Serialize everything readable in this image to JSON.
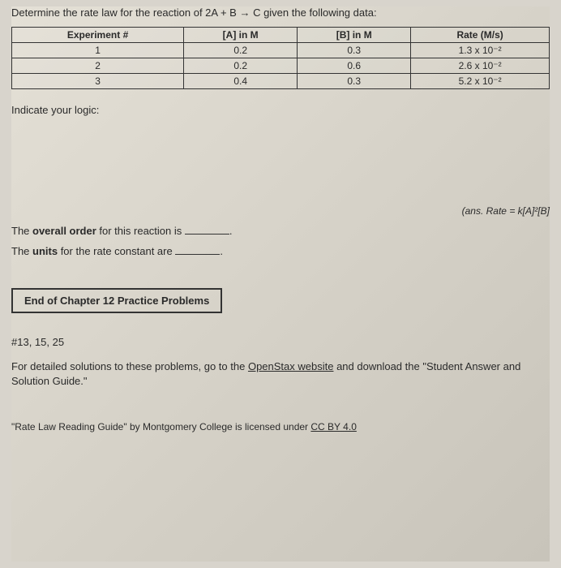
{
  "prompt": "Determine the rate law for the reaction of 2A + B → C given the following data:",
  "table": {
    "headers": [
      "Experiment #",
      "[A] in M",
      "[B] in M",
      "Rate (M/s)"
    ],
    "rows": [
      [
        "1",
        "0.2",
        "0.3",
        "1.3 x 10⁻²"
      ],
      [
        "2",
        "0.2",
        "0.6",
        "2.6 x 10⁻²"
      ],
      [
        "3",
        "0.4",
        "0.3",
        "5.2 x 10⁻²"
      ]
    ],
    "border_color": "#333333",
    "header_fontweight": "bold"
  },
  "logic_label": "Indicate your logic:",
  "answer_hint": "(ans. Rate = k[A]²[B]",
  "fill1_pre": "The ",
  "fill1_bold": "overall order",
  "fill1_post": " for this reaction is ",
  "fill1_end": ".",
  "fill2_pre": "The ",
  "fill2_bold": "units",
  "fill2_post": " for the rate constant are ",
  "fill2_end": ".",
  "eoc_title": "End of Chapter 12 Practice Problems",
  "problem_nums": "#13, 15, 25",
  "detail_pre": "For detailed solutions to these problems, go to the ",
  "detail_link": "OpenStax website",
  "detail_post": " and download the \"Student Answer and Solution Guide.\"",
  "footer_pre": "\"Rate Law Reading Guide\" by Montgomery College is licensed under ",
  "footer_link": "CC BY 4.0",
  "colors": {
    "page_bg": "#d8d4cc",
    "text": "#2a2a2a",
    "border": "#333333"
  }
}
